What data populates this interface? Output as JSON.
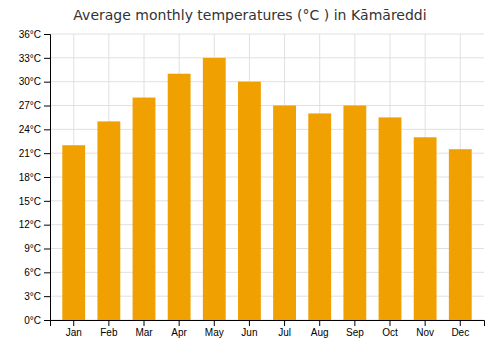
{
  "chart_data": {
    "type": "bar",
    "title": "Average monthly temperatures (°C ) in Kāmāreddi",
    "categories": [
      "Jan",
      "Feb",
      "Mar",
      "Apr",
      "May",
      "Jun",
      "Jul",
      "Aug",
      "Sep",
      "Oct",
      "Nov",
      "Dec"
    ],
    "values": [
      22,
      25,
      28,
      31,
      33,
      30,
      27,
      26,
      27,
      25.5,
      23,
      21.5
    ],
    "color": "#F0A000",
    "ylim": [
      0,
      36
    ],
    "yticks": [
      {
        "value": 0,
        "label": "0°C"
      },
      {
        "value": 3,
        "label": "3°C"
      },
      {
        "value": 6,
        "label": "6°C"
      },
      {
        "value": 9,
        "label": "9°C"
      },
      {
        "value": 12,
        "label": "12°C"
      },
      {
        "value": 15,
        "label": "15°C"
      },
      {
        "value": 18,
        "label": "18°C"
      },
      {
        "value": 21,
        "label": "21°C"
      },
      {
        "value": 24,
        "label": "24°C"
      },
      {
        "value": 27,
        "label": "27°C"
      },
      {
        "value": 30,
        "label": "30°C"
      },
      {
        "value": 33,
        "label": "33°C"
      },
      {
        "value": 36,
        "label": "36°C"
      }
    ],
    "grid": true
  }
}
